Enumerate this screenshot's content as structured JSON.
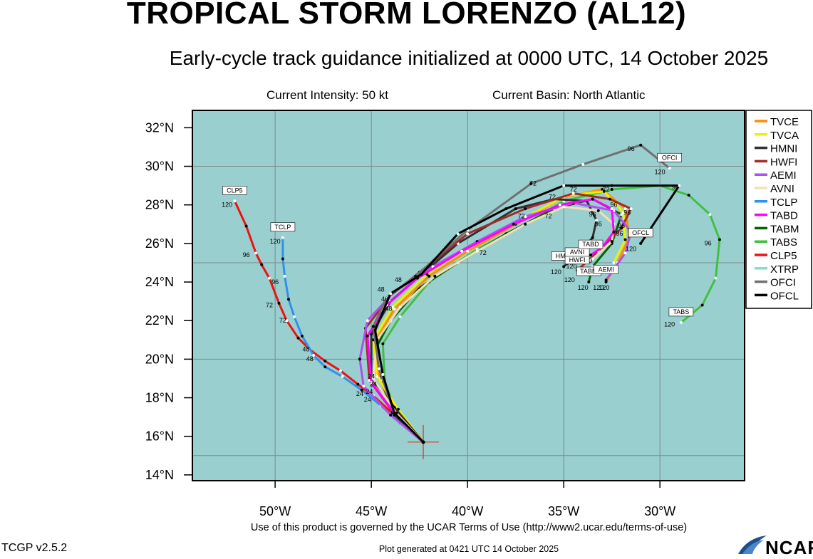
{
  "header": {
    "title": "TROPICAL STORM LORENZO (AL12)",
    "subtitle": "Early-cycle track guidance initialized at 0000 UTC, 14 October 2025",
    "intensity": "Current Intensity: 50 kt",
    "basin": "Current Basin: North Atlantic"
  },
  "footer": {
    "terms": "Use of this product is governed by the UCAR Terms of Use (http://www2.ucar.edu/terms-of-use)",
    "version": "TCGP v2.5.2",
    "generated": "Plot generated at 0421 UTC   14 October 2025",
    "logo": "NCAR"
  },
  "map": {
    "ocean_color": "#9acfcf",
    "grid_color": "#7a8a8a",
    "lon_range": [
      -54.3,
      -25.6
    ],
    "lat_range": [
      13.7,
      32.9
    ],
    "lon_ticks": [
      {
        "lon": -50,
        "label": "50°W"
      },
      {
        "lon": -45,
        "label": "45°W"
      },
      {
        "lon": -40,
        "label": "40°W"
      },
      {
        "lon": -35,
        "label": "35°W"
      },
      {
        "lon": -30,
        "label": "30°W"
      }
    ],
    "lat_ticks": [
      {
        "lat": 14,
        "label": "14°N"
      },
      {
        "lat": 16,
        "label": "16°N"
      },
      {
        "lat": 18,
        "label": "18°N"
      },
      {
        "lat": 20,
        "label": "20°N"
      },
      {
        "lat": 22,
        "label": "22°N"
      },
      {
        "lat": 24,
        "label": "24°N"
      },
      {
        "lat": 26,
        "label": "26°N"
      },
      {
        "lat": 28,
        "label": "28°N"
      },
      {
        "lat": 30,
        "label": "30°N"
      },
      {
        "lat": 32,
        "label": "32°N"
      }
    ],
    "grid_lons": [
      -50,
      -45,
      -40,
      -35,
      -30
    ],
    "grid_lats": [
      15,
      20,
      25,
      30
    ],
    "storm_position": {
      "lon": -42.3,
      "lat": 15.7
    }
  },
  "legend": [
    {
      "name": "TVCE",
      "color": "#ff8c00"
    },
    {
      "name": "TVCA",
      "color": "#f0f000"
    },
    {
      "name": "HMNI",
      "color": "#303030"
    },
    {
      "name": "HWFI",
      "color": "#a52a2a"
    },
    {
      "name": "AEMI",
      "color": "#b050f0"
    },
    {
      "name": "AVNI",
      "color": "#f5deb3"
    },
    {
      "name": "TCLP",
      "color": "#3090ee"
    },
    {
      "name": "TABD",
      "color": "#ff00ff"
    },
    {
      "name": "TABM",
      "color": "#006400"
    },
    {
      "name": "TABS",
      "color": "#40c040"
    },
    {
      "name": "CLP5",
      "color": "#ee1111"
    },
    {
      "name": "XTRP",
      "color": "#80e0c0"
    },
    {
      "name": "OFCI",
      "color": "#707070"
    },
    {
      "name": "OFCL",
      "color": "#000000"
    }
  ],
  "tracks": [
    {
      "name": "CLP5",
      "color": "#ee1111",
      "label": "CLP5",
      "points": [
        [
          -42.3,
          15.7
        ],
        [
          -43.9,
          17.2
        ],
        [
          -44.9,
          18.1
        ],
        [
          -45.7,
          18.7
        ],
        [
          -46.6,
          19.4
        ],
        [
          -47.4,
          19.9
        ],
        [
          -48.2,
          20.5
        ],
        [
          -48.8,
          21.1
        ],
        [
          -49.4,
          22.0
        ],
        [
          -49.8,
          22.9
        ],
        [
          -50.3,
          24.2
        ],
        [
          -50.7,
          24.9
        ],
        [
          -51.0,
          25.5
        ],
        [
          -51.5,
          26.9
        ],
        [
          -52.1,
          28.2
        ]
      ],
      "hour_labels": [
        {
          "text": "24",
          "lon": -45.2,
          "lat": 17.8
        },
        {
          "text": "48",
          "lon": -48.2,
          "lat": 19.9
        },
        {
          "text": "72",
          "lon": -50.3,
          "lat": 22.7
        },
        {
          "text": "96",
          "lon": -51.5,
          "lat": 25.3
        },
        {
          "text": "120",
          "lon": -52.5,
          "lat": 27.9
        }
      ]
    },
    {
      "name": "TCLP",
      "color": "#3090ee",
      "label": "TCLP",
      "points": [
        [
          -42.3,
          15.7
        ],
        [
          -43.5,
          16.7
        ],
        [
          -44.5,
          17.6
        ],
        [
          -45.5,
          18.4
        ],
        [
          -46.5,
          19.1
        ],
        [
          -47.4,
          19.6
        ],
        [
          -48.0,
          20.2
        ],
        [
          -48.6,
          21.2
        ],
        [
          -49.0,
          22.2
        ],
        [
          -49.3,
          23.1
        ],
        [
          -49.5,
          24.3
        ],
        [
          -49.6,
          25.2
        ],
        [
          -49.6,
          26.3
        ]
      ],
      "hour_labels": [
        {
          "text": "24",
          "lon": -45.6,
          "lat": 18.1
        },
        {
          "text": "48",
          "lon": -48.4,
          "lat": 20.4
        },
        {
          "text": "72",
          "lon": -49.6,
          "lat": 21.9
        },
        {
          "text": "96",
          "lon": -50.0,
          "lat": 23.9
        },
        {
          "text": "120",
          "lon": -50.0,
          "lat": 26.0
        }
      ]
    },
    {
      "name": "TABS",
      "color": "#40c040",
      "label": "TABS",
      "points": [
        [
          -42.3,
          15.7
        ],
        [
          -43.6,
          17.0
        ],
        [
          -44.3,
          18.8
        ],
        [
          -44.4,
          20.8
        ],
        [
          -43.5,
          22.2
        ],
        [
          -42.0,
          24.0
        ],
        [
          -39.5,
          25.7
        ],
        [
          -37.0,
          27.0
        ],
        [
          -35.0,
          28.2
        ],
        [
          -32.5,
          28.8
        ],
        [
          -30.0,
          29.0
        ],
        [
          -28.5,
          28.5
        ],
        [
          -27.4,
          27.5
        ],
        [
          -26.9,
          26.2
        ],
        [
          -27.1,
          24.2
        ],
        [
          -27.8,
          22.8
        ],
        [
          -28.9,
          21.9
        ]
      ],
      "hour_labels": [
        {
          "text": "96",
          "lon": -27.5,
          "lat": 25.9
        },
        {
          "text": "120",
          "lon": -29.5,
          "lat": 21.7
        }
      ]
    },
    {
      "name": "TABM",
      "color": "#006400",
      "label": "TABM",
      "points": [
        [
          -42.3,
          15.7
        ],
        [
          -43.8,
          17.1
        ],
        [
          -44.5,
          18.9
        ],
        [
          -44.8,
          20.5
        ],
        [
          -44.0,
          22.0
        ],
        [
          -42.5,
          23.7
        ],
        [
          -40.5,
          25.0
        ],
        [
          -38.0,
          26.5
        ],
        [
          -35.5,
          27.8
        ],
        [
          -33.5,
          28.3
        ],
        [
          -32.0,
          27.5
        ],
        [
          -32.5,
          26.0
        ],
        [
          -33.5,
          24.8
        ],
        [
          -33.7,
          24.0
        ]
      ],
      "hour_labels": [
        {
          "text": "120",
          "lon": -34.0,
          "lat": 23.6
        }
      ]
    },
    {
      "name": "TVCE",
      "color": "#ff8c00",
      "label": "",
      "points": [
        [
          -42.3,
          15.7
        ],
        [
          -43.7,
          17.3
        ],
        [
          -44.6,
          19.0
        ],
        [
          -44.8,
          20.9
        ],
        [
          -43.8,
          22.6
        ],
        [
          -42.0,
          24.3
        ],
        [
          -40.0,
          25.6
        ],
        [
          -37.5,
          27.0
        ],
        [
          -35.0,
          28.4
        ],
        [
          -33.0,
          28.8
        ],
        [
          -31.8,
          27.8
        ],
        [
          -31.6,
          26.3
        ],
        [
          -32.2,
          25.0
        ],
        [
          -32.8,
          24.0
        ]
      ],
      "hour_labels": []
    },
    {
      "name": "TVCA",
      "color": "#f0f000",
      "label": "",
      "points": [
        [
          -42.3,
          15.7
        ],
        [
          -43.6,
          17.4
        ],
        [
          -44.7,
          19.1
        ],
        [
          -44.9,
          21.0
        ],
        [
          -43.9,
          22.7
        ],
        [
          -42.1,
          24.4
        ],
        [
          -40.0,
          25.8
        ],
        [
          -37.3,
          27.2
        ],
        [
          -34.8,
          28.5
        ],
        [
          -32.9,
          28.7
        ],
        [
          -31.9,
          27.6
        ],
        [
          -31.8,
          26.2
        ],
        [
          -32.4,
          25.0
        ]
      ],
      "hour_labels": []
    },
    {
      "name": "HMNI",
      "color": "#303030",
      "label": "HMNI",
      "points": [
        [
          -42.3,
          15.7
        ],
        [
          -43.8,
          17.5
        ],
        [
          -45.0,
          19.0
        ],
        [
          -45.0,
          21.3
        ],
        [
          -44.0,
          23.0
        ],
        [
          -42.5,
          24.3
        ],
        [
          -40.5,
          26.0
        ],
        [
          -37.5,
          27.8
        ],
        [
          -35.5,
          28.3
        ],
        [
          -33.8,
          28.2
        ],
        [
          -33.3,
          27.2
        ],
        [
          -33.5,
          26.3
        ],
        [
          -34.4,
          25.3
        ],
        [
          -35.0,
          24.8
        ]
      ],
      "hour_labels": [
        {
          "text": "120",
          "lon": -35.4,
          "lat": 24.4
        }
      ]
    },
    {
      "name": "HWFI",
      "color": "#a52a2a",
      "label": "HWFI",
      "points": [
        [
          -42.3,
          15.7
        ],
        [
          -43.9,
          17.3
        ],
        [
          -45.1,
          18.9
        ],
        [
          -45.3,
          21.6
        ],
        [
          -44.0,
          23.3
        ],
        [
          -42.5,
          24.5
        ],
        [
          -40.0,
          26.5
        ],
        [
          -37.0,
          27.8
        ],
        [
          -34.5,
          28.6
        ],
        [
          -32.6,
          28.3
        ],
        [
          -31.5,
          27.8
        ],
        [
          -32.0,
          26.8
        ],
        [
          -33.2,
          25.6
        ],
        [
          -34.3,
          24.6
        ]
      ],
      "hour_labels": [
        {
          "text": "120",
          "lon": -34.7,
          "lat": 24.0
        }
      ]
    },
    {
      "name": "AEMI",
      "color": "#b050f0",
      "label": "AEMI",
      "points": [
        [
          -42.3,
          15.7
        ],
        [
          -44.0,
          17.1
        ],
        [
          -45.4,
          18.6
        ],
        [
          -45.6,
          20.0
        ],
        [
          -45.2,
          22.0
        ],
        [
          -43.8,
          23.5
        ],
        [
          -41.8,
          24.8
        ],
        [
          -39.5,
          26.1
        ],
        [
          -37.0,
          27.4
        ],
        [
          -34.5,
          28.1
        ],
        [
          -32.4,
          27.7
        ],
        [
          -31.5,
          26.6
        ],
        [
          -31.8,
          25.5
        ],
        [
          -32.8,
          24.1
        ]
      ],
      "hour_labels": [
        {
          "text": "120",
          "lon": -32.9,
          "lat": 23.6
        }
      ]
    },
    {
      "name": "AVNI",
      "color": "#f5deb3",
      "label": "AVNI",
      "points": [
        [
          -42.3,
          15.7
        ],
        [
          -43.7,
          17.2
        ],
        [
          -44.9,
          19.0
        ],
        [
          -44.7,
          21.0
        ],
        [
          -43.5,
          22.7
        ],
        [
          -41.7,
          24.3
        ],
        [
          -39.5,
          25.6
        ],
        [
          -37.0,
          27.0
        ],
        [
          -35.0,
          27.9
        ],
        [
          -33.2,
          27.7
        ],
        [
          -32.4,
          27.0
        ],
        [
          -32.5,
          26.1
        ],
        [
          -33.5,
          25.2
        ],
        [
          -34.3,
          25.0
        ]
      ],
      "hour_labels": [
        {
          "text": "120",
          "lon": -34.6,
          "lat": 24.7
        }
      ]
    },
    {
      "name": "TABD",
      "color": "#ff00ff",
      "label": "TABD",
      "points": [
        [
          -42.3,
          15.7
        ],
        [
          -43.8,
          17.2
        ],
        [
          -45.0,
          18.8
        ],
        [
          -45.2,
          21.2
        ],
        [
          -44.2,
          22.8
        ],
        [
          -42.6,
          24.2
        ],
        [
          -40.3,
          25.6
        ],
        [
          -37.6,
          27.0
        ],
        [
          -35.2,
          28.0
        ],
        [
          -33.5,
          28.3
        ],
        [
          -32.5,
          27.8
        ],
        [
          -32.4,
          26.6
        ],
        [
          -33.0,
          25.8
        ],
        [
          -33.6,
          25.4
        ]
      ],
      "hour_labels": [
        {
          "text": "120",
          "lon": -33.8,
          "lat": 25.0
        }
      ]
    },
    {
      "name": "OFCI",
      "color": "#707070",
      "label": "OFCI",
      "points": [
        [
          -42.3,
          15.7
        ],
        [
          -43.8,
          17.2
        ],
        [
          -44.6,
          19.5
        ],
        [
          -44.9,
          21.7
        ],
        [
          -44.2,
          23.2
        ],
        [
          -42.7,
          24.3
        ],
        [
          -40.0,
          26.7
        ],
        [
          -36.7,
          29.1
        ],
        [
          -34.0,
          30.1
        ],
        [
          -31.0,
          31.1
        ],
        [
          -29.5,
          29.9
        ]
      ],
      "hour_labels": [
        {
          "text": "96",
          "lon": -31.5,
          "lat": 30.8
        },
        {
          "text": "120",
          "lon": -30.0,
          "lat": 29.6
        }
      ]
    },
    {
      "name": "OFCL",
      "color": "#000000",
      "label": "OFCL",
      "points": [
        [
          -42.3,
          15.7
        ],
        [
          -43.8,
          17.2
        ],
        [
          -44.4,
          19.2
        ],
        [
          -44.8,
          21.5
        ],
        [
          -44.0,
          23.4
        ],
        [
          -42.4,
          24.4
        ],
        [
          -40.5,
          26.5
        ],
        [
          -38.0,
          27.8
        ],
        [
          -35.0,
          29.0
        ],
        [
          -32.5,
          29.0
        ],
        [
          -29.0,
          29.0
        ],
        [
          -31.0,
          26.0
        ]
      ],
      "hour_labels": [
        {
          "text": "96",
          "lon": -29.2,
          "lat": 28.8
        },
        {
          "text": "120",
          "lon": -31.5,
          "lat": 25.6
        }
      ]
    }
  ],
  "extra_hour_labels": [
    {
      "text": "24",
      "lon": -44.9,
      "lat": 18.6
    },
    {
      "text": "24",
      "lon": -45.1,
      "lat": 18.2
    },
    {
      "text": "24",
      "lon": -45.0,
      "lat": 19.0
    },
    {
      "text": "48",
      "lon": -44.5,
      "lat": 23.5
    },
    {
      "text": "48",
      "lon": -44.1,
      "lat": 22.5
    },
    {
      "text": "48",
      "lon": -44.3,
      "lat": 23.0
    },
    {
      "text": "48",
      "lon": -43.6,
      "lat": 24.0
    },
    {
      "text": "72",
      "lon": -39.2,
      "lat": 25.4
    },
    {
      "text": "72",
      "lon": -37.2,
      "lat": 27.3
    },
    {
      "text": "72",
      "lon": -35.8,
      "lat": 27.3
    },
    {
      "text": "72",
      "lon": -36.6,
      "lat": 29.0
    },
    {
      "text": "72",
      "lon": -34.5,
      "lat": 28.7
    },
    {
      "text": "72",
      "lon": -32.8,
      "lat": 28.7
    },
    {
      "text": "72",
      "lon": -35.6,
      "lat": 28.3
    },
    {
      "text": "96",
      "lon": -33.5,
      "lat": 27.4
    },
    {
      "text": "96",
      "lon": -33.2,
      "lat": 26.9
    },
    {
      "text": "96",
      "lon": -32.4,
      "lat": 27.9
    },
    {
      "text": "96",
      "lon": -31.7,
      "lat": 27.5
    },
    {
      "text": "96",
      "lon": -32.0,
      "lat": 26.8
    },
    {
      "text": "96",
      "lon": -32.1,
      "lat": 26.4
    },
    {
      "text": "120",
      "lon": -33.2,
      "lat": 23.6
    }
  ]
}
